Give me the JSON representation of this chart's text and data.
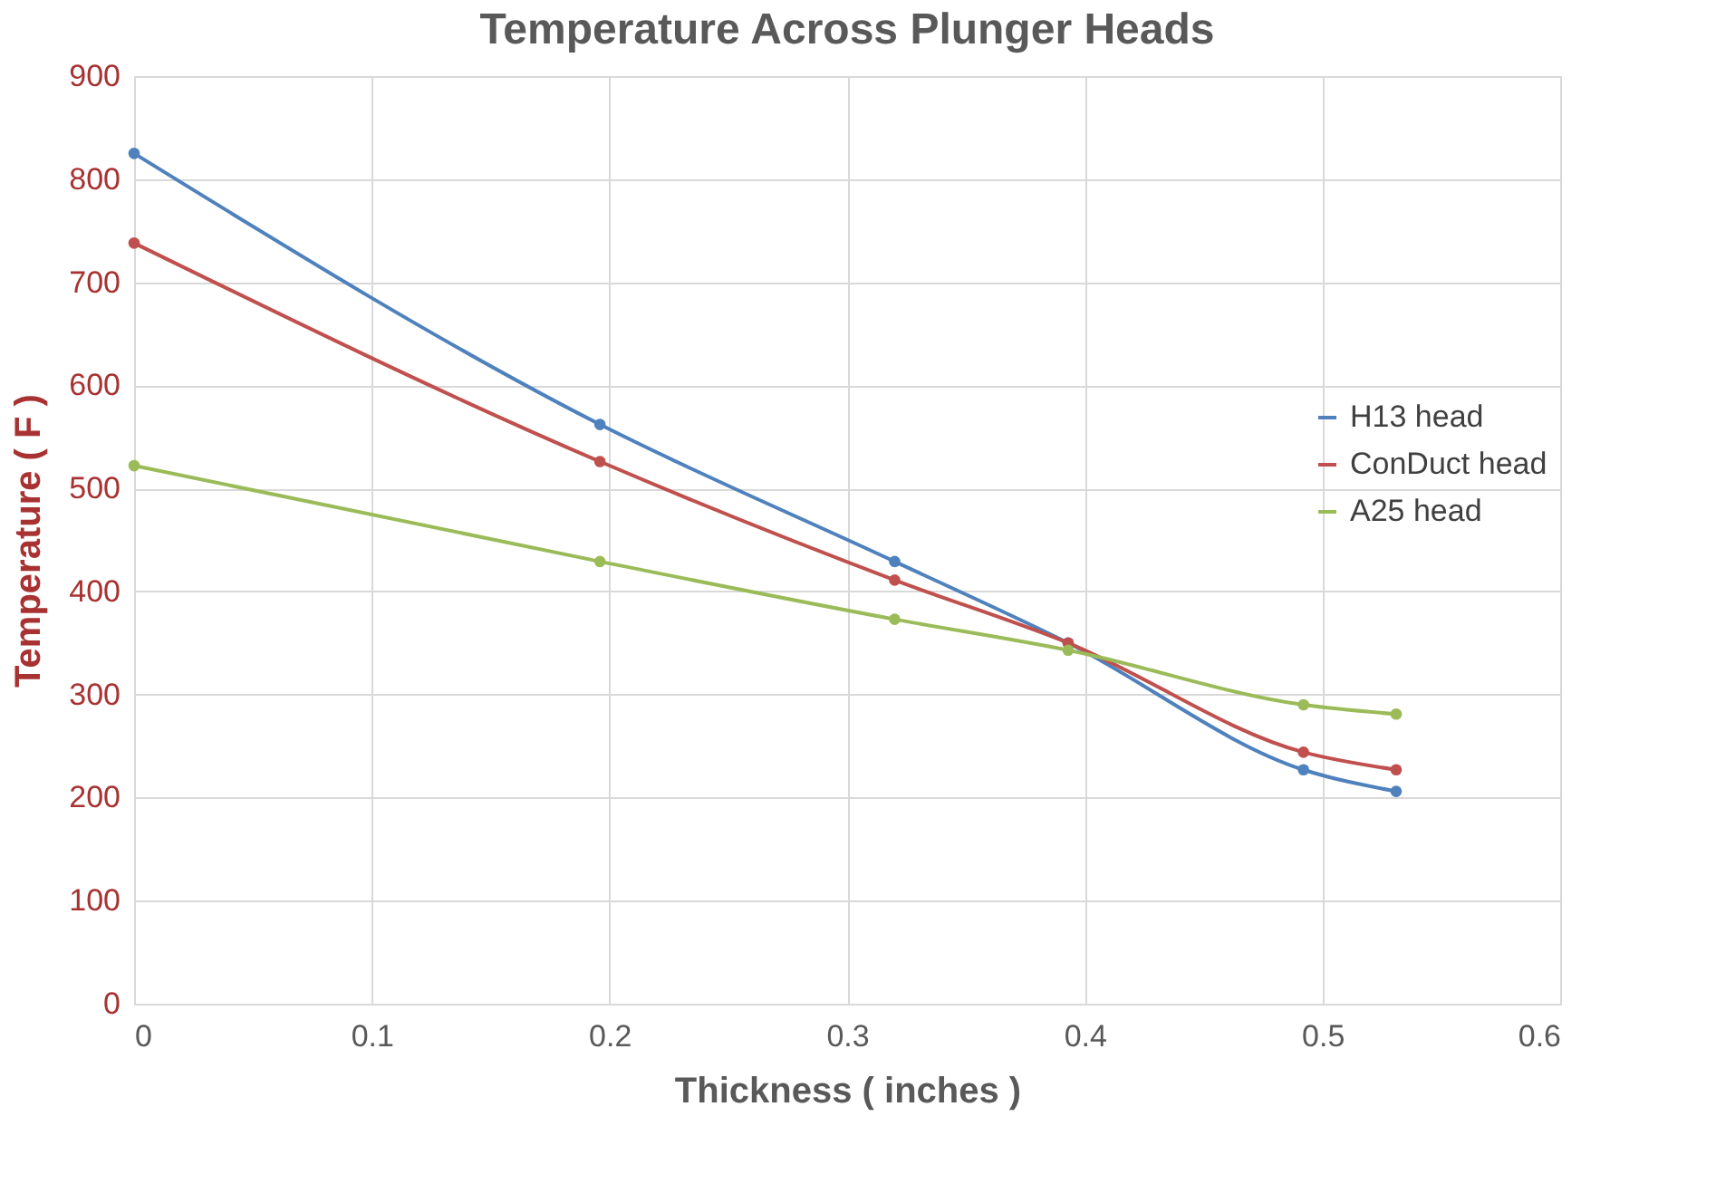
{
  "chart_data": {
    "type": "line",
    "title": "Temperature Across Plunger Heads",
    "xlabel": "Thickness ( inches )",
    "ylabel": "Temperature ( F )",
    "x": [
      0,
      0.196,
      0.32,
      0.393,
      0.492,
      0.531
    ],
    "series": [
      {
        "name": "H13 head",
        "color": "#4f81bd",
        "values": [
          825,
          562,
          429,
          350,
          227,
          206
        ]
      },
      {
        "name": "ConDuct head",
        "color": "#c0504d",
        "values": [
          738,
          526,
          411,
          350,
          244,
          227
        ]
      },
      {
        "name": "A25 head",
        "color": "#9bbb59",
        "values": [
          522,
          429,
          373,
          343,
          290,
          281
        ]
      }
    ],
    "xlim": [
      0,
      0.6
    ],
    "xticks": [
      0,
      0.1,
      0.2,
      0.3,
      0.4,
      0.5,
      0.6
    ],
    "ylim": [
      0,
      900
    ],
    "yticks": [
      0,
      100,
      200,
      300,
      400,
      500,
      600,
      700,
      800,
      900
    ],
    "grid": true,
    "legend": "right",
    "marker": "circle",
    "line_style": "solid"
  }
}
